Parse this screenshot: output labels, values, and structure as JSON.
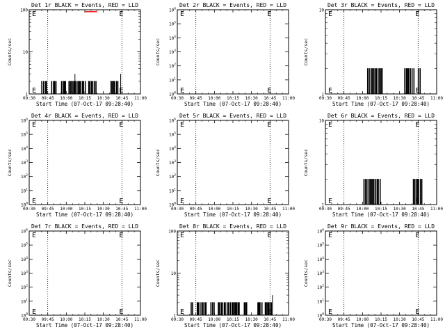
{
  "figure": {
    "background": "#ffffff",
    "events_color": "#000000",
    "lld_color": "#ff0000"
  },
  "chart_data": [
    {
      "type": "line",
      "title": "Det 1r BLACK = Events, RED = LLD",
      "xlabel": "Start Time (07-Oct-17 09:28:40)",
      "ylabel": "Counts/sec",
      "x_ticks": [
        "09:30",
        "09:45",
        "10:00",
        "10:15",
        "10:30",
        "10:45",
        "11:00"
      ],
      "y_scale": "log",
      "ylim": [
        1,
        100
      ],
      "y_ticks": [
        "1",
        "10",
        "100"
      ],
      "dotted_lines_at": [
        "09:45",
        "10:45",
        "11:00"
      ],
      "series": [
        {
          "name": "Events",
          "color": "#000000",
          "spike_ranges": [
            [
              "09:40",
              "09:44"
            ],
            [
              "09:48",
              "09:52"
            ],
            [
              "09:56",
              "10:00"
            ],
            [
              "10:02",
              "10:16"
            ],
            [
              "10:18",
              "10:24"
            ],
            [
              "10:36",
              "10:42"
            ]
          ],
          "spike_value": 2,
          "peaks": [
            {
              "x": "10:07",
              "y": 3
            },
            {
              "x": "10:44",
              "y": 3
            }
          ]
        },
        {
          "name": "LLD",
          "color": "#ff0000",
          "segments": [
            {
              "x0": "10:15",
              "x1": "10:25",
              "y": 90
            }
          ]
        }
      ]
    },
    {
      "type": "line",
      "title": "Det 2r BLACK = Events, RED = LLD",
      "xlabel": "Start Time (07-Oct-17 09:28:40)",
      "ylabel": "Counts/sec",
      "x_ticks": [
        "09:30",
        "09:45",
        "10:00",
        "10:15",
        "10:30",
        "10:45",
        "11:00"
      ],
      "y_scale": "log",
      "ylim": [
        1,
        1000000
      ],
      "y_ticks": [
        "10^0",
        "10^1",
        "10^2",
        "10^3",
        "10^4",
        "10^5",
        "10^6"
      ],
      "dotted_lines_at": [
        "09:45",
        "10:45",
        "11:00"
      ],
      "series": []
    },
    {
      "type": "line",
      "title": "Det 3r BLACK = Events, RED = LLD",
      "xlabel": "Start Time (07-Oct-17 09:28:40)",
      "ylabel": "Counts/sec",
      "x_ticks": [
        "09:30",
        "09:45",
        "10:00",
        "10:15",
        "10:30",
        "10:45",
        "11:00"
      ],
      "y_scale": "log",
      "ylim": [
        1,
        10
      ],
      "y_ticks": [
        "1",
        "10"
      ],
      "dotted_lines_at": [
        "09:45",
        "10:45",
        "11:00"
      ],
      "series": [
        {
          "name": "Events",
          "color": "#000000",
          "spike_ranges": [
            [
              "10:04",
              "10:16"
            ],
            [
              "10:34",
              "10:42"
            ],
            [
              "10:45",
              "10:47"
            ]
          ],
          "spike_value": 2,
          "peaks": []
        }
      ]
    },
    {
      "type": "line",
      "title": "Det 4r BLACK = Events, RED = LLD",
      "xlabel": "Start Time (07-Oct-17 09:28:40)",
      "ylabel": "Counts/sec",
      "x_ticks": [
        "09:30",
        "09:45",
        "10:00",
        "10:15",
        "10:30",
        "10:45",
        "11:00"
      ],
      "y_scale": "log",
      "ylim": [
        1,
        1000000
      ],
      "y_ticks": [
        "10^0",
        "10^1",
        "10^2",
        "10^3",
        "10^4",
        "10^5",
        "10^6"
      ],
      "dotted_lines_at": [
        "09:45",
        "10:45",
        "11:00"
      ],
      "series": []
    },
    {
      "type": "line",
      "title": "Det 5r BLACK = Events, RED = LLD",
      "xlabel": "Start Time (07-Oct-17 09:28:40)",
      "ylabel": "Counts/sec",
      "x_ticks": [
        "09:30",
        "09:45",
        "10:00",
        "10:15",
        "10:30",
        "10:45",
        "11:00"
      ],
      "y_scale": "log",
      "ylim": [
        1,
        1000000
      ],
      "y_ticks": [
        "10^0",
        "10^1",
        "10^2",
        "10^3",
        "10^4",
        "10^5",
        "10^6"
      ],
      "dotted_lines_at": [
        "09:45",
        "10:45",
        "11:00"
      ],
      "series": []
    },
    {
      "type": "line",
      "title": "Det 6r BLACK = Events, RED = LLD",
      "xlabel": "Start Time (07-Oct-17 09:28:40)",
      "ylabel": "Counts/sec",
      "x_ticks": [
        "09:30",
        "09:45",
        "10:00",
        "10:15",
        "10:30",
        "10:45",
        "11:00"
      ],
      "y_scale": "log",
      "ylim": [
        1,
        10
      ],
      "y_ticks": [
        "1",
        "10"
      ],
      "dotted_lines_at": [
        "09:45",
        "10:45",
        "11:00"
      ],
      "series": [
        {
          "name": "Events",
          "color": "#000000",
          "spike_ranges": [
            [
              "10:01",
              "10:15"
            ],
            [
              "10:41",
              "10:48"
            ]
          ],
          "spike_value": 2,
          "peaks": []
        }
      ]
    },
    {
      "type": "line",
      "title": "Det 7r BLACK = Events, RED = LLD",
      "xlabel": "Start Time (07-Oct-17 09:28:40)",
      "ylabel": "Counts/sec",
      "x_ticks": [
        "09:30",
        "09:45",
        "10:00",
        "10:15",
        "10:30",
        "10:45",
        "11:00"
      ],
      "y_scale": "log",
      "ylim": [
        1,
        1000000
      ],
      "y_ticks": [
        "10^0",
        "10^1",
        "10^2",
        "10^3",
        "10^4",
        "10^5",
        "10^6"
      ],
      "dotted_lines_at": [
        "09:45",
        "10:45",
        "11:00"
      ],
      "series": []
    },
    {
      "type": "line",
      "title": "Det 8r BLACK = Events, RED = LLD",
      "xlabel": "Start Time (07-Oct-17 09:28:40)",
      "ylabel": "Counts/sec",
      "x_ticks": [
        "09:30",
        "09:45",
        "10:00",
        "10:15",
        "10:30",
        "10:45",
        "11:00"
      ],
      "y_scale": "log",
      "ylim": [
        1,
        100
      ],
      "y_ticks": [
        "1",
        "10",
        "100"
      ],
      "dotted_lines_at": [
        "09:45",
        "10:45",
        "11:00"
      ],
      "series": [
        {
          "name": "Events",
          "color": "#000000",
          "spike_ranges": [
            [
              "09:41",
              "09:43"
            ],
            [
              "09:46",
              "09:54"
            ],
            [
              "09:57",
              "10:00"
            ],
            [
              "10:03",
              "10:20"
            ],
            [
              "10:24",
              "10:26"
            ],
            [
              "10:35",
              "10:39"
            ],
            [
              "10:41",
              "10:47"
            ]
          ],
          "spike_value": 2,
          "peaks": [
            {
              "x": "10:47",
              "y": 3
            }
          ]
        }
      ]
    },
    {
      "type": "line",
      "title": "Det 9r BLACK = Events, RED = LLD",
      "xlabel": "Start Time (07-Oct-17 09:28:40)",
      "ylabel": "Counts/sec",
      "x_ticks": [
        "09:30",
        "09:45",
        "10:00",
        "10:15",
        "10:30",
        "10:45",
        "11:00"
      ],
      "y_scale": "log",
      "ylim": [
        1,
        1000000
      ],
      "y_ticks": [
        "10^0",
        "10^1",
        "10^2",
        "10^3",
        "10^4",
        "10^5",
        "10^6"
      ],
      "dotted_lines_at": [
        "09:45",
        "10:45",
        "11:00"
      ],
      "series": []
    }
  ]
}
